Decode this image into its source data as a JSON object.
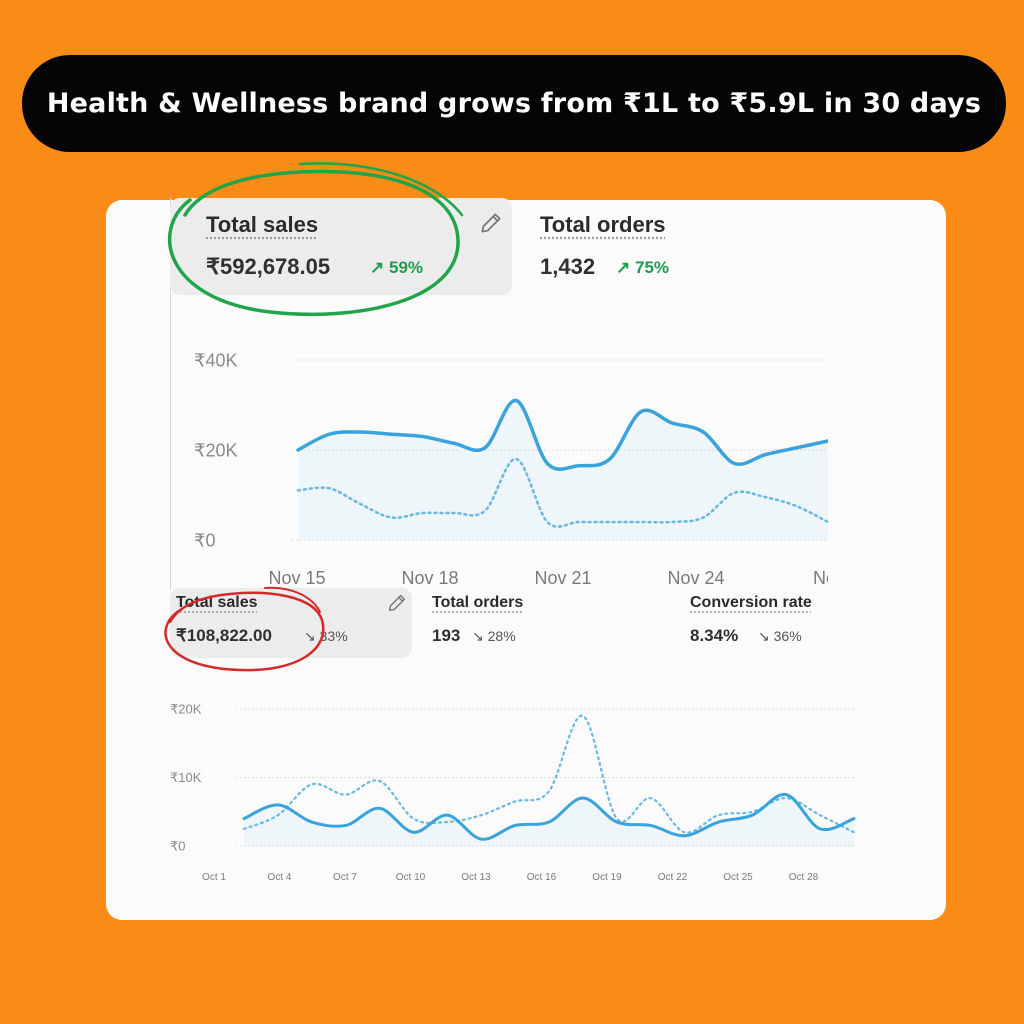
{
  "banner": {
    "title": "Health & Wellness brand grows from ₹1L to ₹5.9L in 30 days"
  },
  "top": {
    "metrics": [
      {
        "title": "Total sales",
        "value": "₹592,678.05",
        "change": "59%",
        "direction": "up"
      },
      {
        "title": "Total orders",
        "value": "1,432",
        "change": "75%",
        "direction": "up"
      }
    ],
    "chart_data": {
      "type": "line",
      "y_ticks": [
        "₹40K",
        "₹20K",
        "₹0"
      ],
      "x_ticks": [
        "Nov 15",
        "Nov 18",
        "Nov 21",
        "Nov 24",
        "Nov"
      ],
      "ylim": [
        0,
        40000
      ],
      "grid": true,
      "series": [
        {
          "style": "solid",
          "values": [
            20000,
            23500,
            24000,
            23500,
            23000,
            21500,
            20500,
            31000,
            17000,
            16500,
            18000,
            28500,
            26000,
            24000,
            17000,
            19000,
            20500,
            22000
          ]
        },
        {
          "style": "dotted",
          "values": [
            11000,
            11500,
            8000,
            5000,
            6000,
            6000,
            6500,
            18000,
            4000,
            4000,
            4000,
            4000,
            4000,
            5000,
            10500,
            9500,
            7500,
            4000
          ]
        }
      ],
      "color": "#3aa3db"
    }
  },
  "bottom": {
    "metrics": [
      {
        "title": "Total sales",
        "value": "₹108,822.00",
        "change": "33%",
        "direction": "down"
      },
      {
        "title": "Total orders",
        "value": "193",
        "change": "28%",
        "direction": "down"
      },
      {
        "title": "Conversion rate",
        "value": "8.34%",
        "change": "36%",
        "direction": "down"
      }
    ],
    "chart_data": {
      "type": "line",
      "y_ticks": [
        "₹20K",
        "₹10K",
        "₹0"
      ],
      "x_ticks": [
        "Oct 1",
        "Oct 4",
        "Oct 7",
        "Oct 10",
        "Oct 13",
        "Oct 16",
        "Oct 19",
        "Oct 22",
        "Oct 25",
        "Oct 28"
      ],
      "ylim": [
        0,
        20000
      ],
      "grid": true,
      "series": [
        {
          "style": "solid",
          "values": [
            4000,
            6000,
            3500,
            3000,
            5500,
            2000,
            4500,
            1000,
            3000,
            3500,
            7000,
            3500,
            3000,
            1500,
            3500,
            4500,
            7500,
            2500,
            4000
          ]
        },
        {
          "style": "dotted",
          "values": [
            2500,
            4500,
            9000,
            7500,
            9500,
            4000,
            3500,
            4500,
            6500,
            8000,
            19000,
            4000,
            7000,
            2000,
            4500,
            5000,
            7000,
            4500,
            2000
          ]
        }
      ],
      "color": "#3aa3db"
    }
  }
}
